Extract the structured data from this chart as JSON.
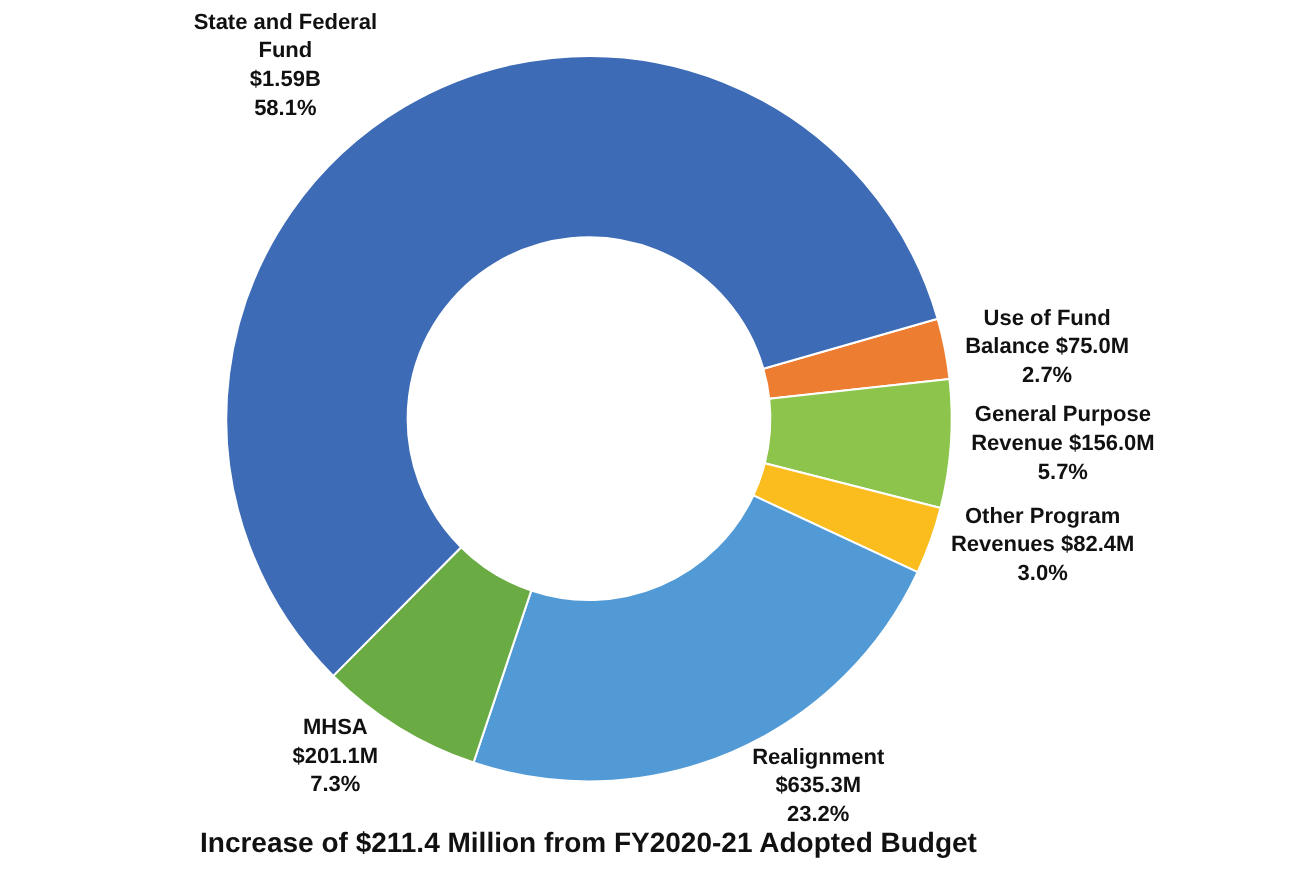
{
  "chart_data": {
    "type": "donut",
    "categories": [
      "Use of Fund\nBalance $75.0M",
      "General Purpose\nRevenue $156.0M",
      "Other Program\nRevenues $82.4M",
      "Realignment\n$635.3M",
      "MHSA\n$201.1M",
      "State and Federal\nFund\n$1.59B"
    ],
    "values": [
      2.7,
      5.7,
      3.0,
      23.2,
      7.3,
      58.1
    ],
    "value_labels": [
      "2.7%",
      "5.7%",
      "3.0%",
      "23.2%",
      "7.3%",
      "58.1%"
    ],
    "colors": [
      "#ed7d31",
      "#8dc54c",
      "#fbbd1e",
      "#529ad6",
      "#6aab44",
      "#3d6bb5"
    ],
    "legend": false,
    "annotations": [
      "Increase of $211.4 Million from FY2020-21 Adopted Budget"
    ]
  }
}
